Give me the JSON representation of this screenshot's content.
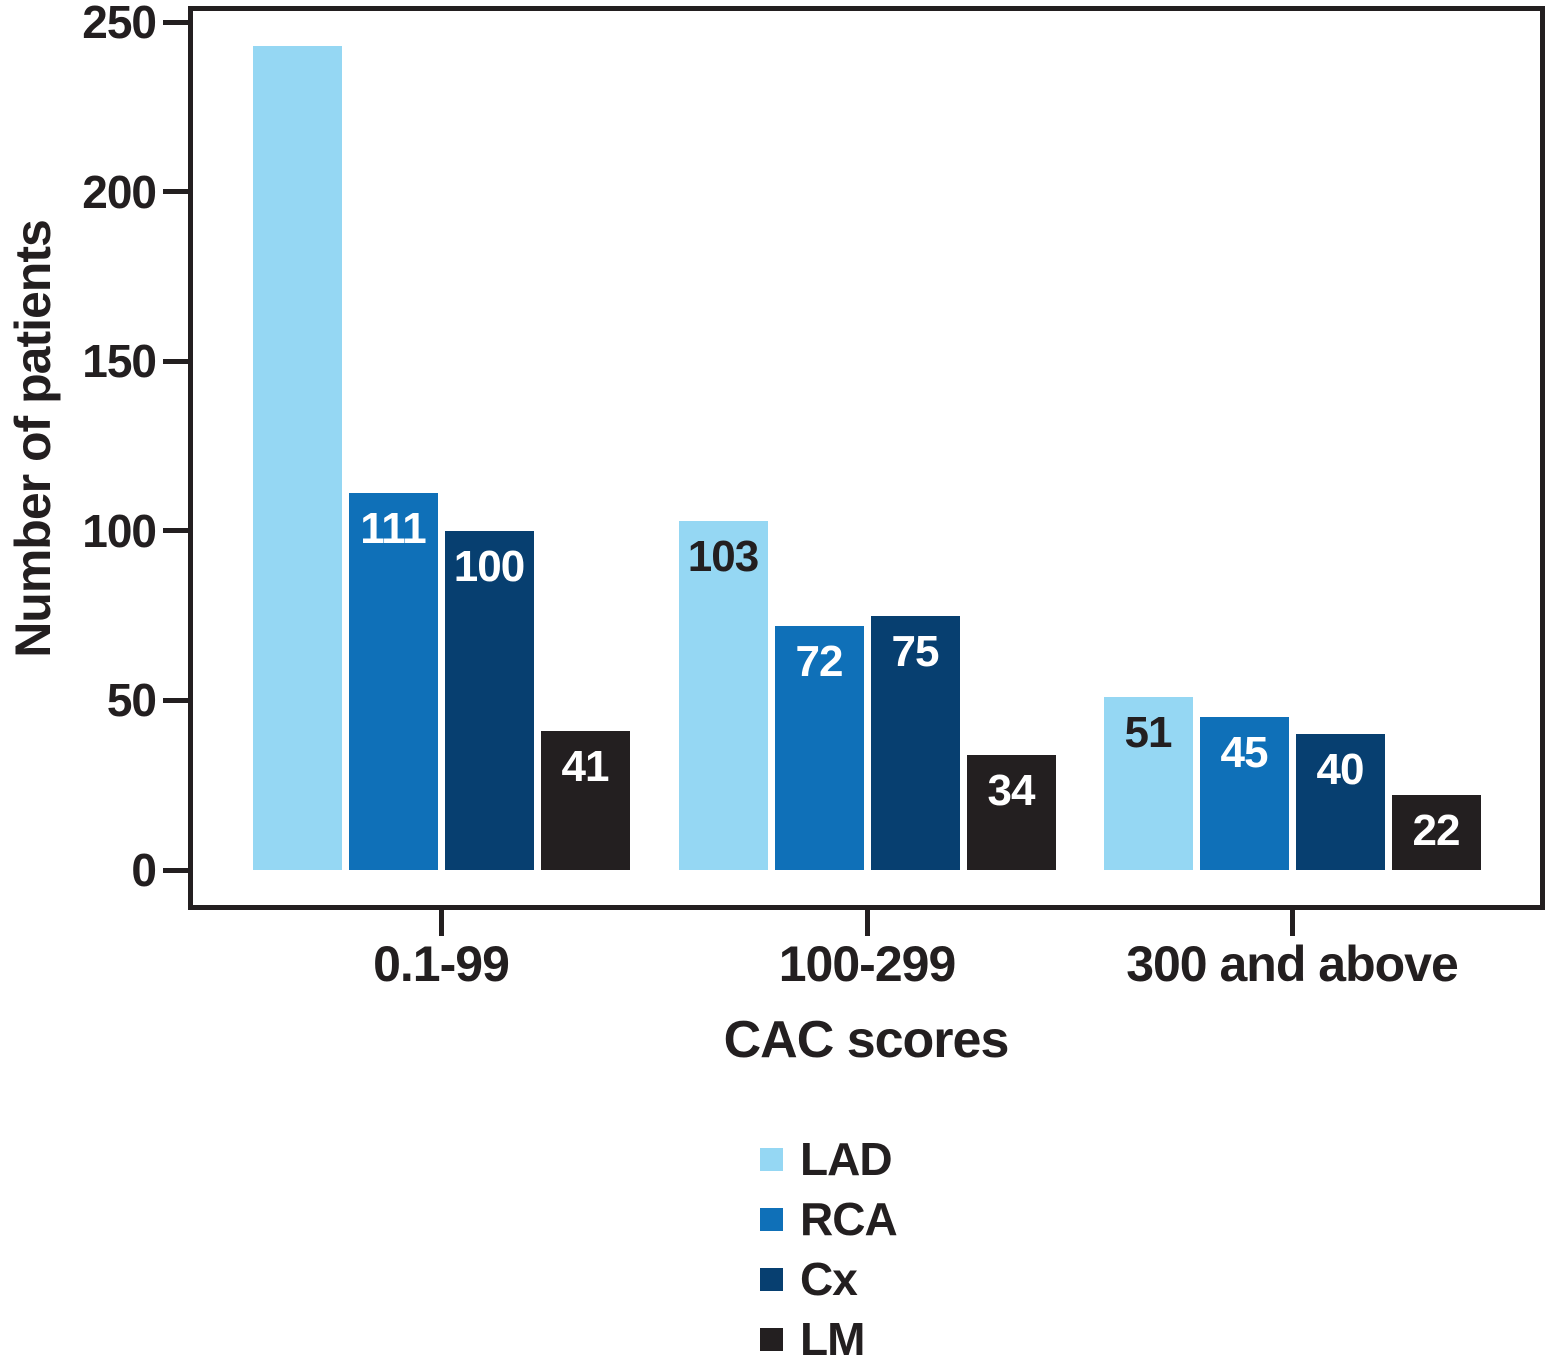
{
  "chart_data": {
    "type": "bar",
    "title": "",
    "xlabel": "CAC scores",
    "ylabel": "Number of patients",
    "categories": [
      "0.1-99",
      "100-299",
      "300 and above"
    ],
    "y_ticks": [
      0,
      50,
      100,
      150,
      200,
      250
    ],
    "ylim": [
      0,
      250
    ],
    "grid": false,
    "legend_position": "bottom-center",
    "frame_color": "#231F20",
    "series": [
      {
        "name": "LAD",
        "color": "#95D7F3",
        "label_color": "#231F20",
        "values": [
          243,
          103,
          51
        ],
        "data_labels": [
          "",
          "103",
          "51"
        ]
      },
      {
        "name": "RCA",
        "color": "#0F70B8",
        "label_color": "#FFFFFF",
        "values": [
          111,
          72,
          45
        ],
        "data_labels": [
          "111",
          "72",
          "45"
        ]
      },
      {
        "name": "Cx",
        "color": "#073F70",
        "label_color": "#FFFFFF",
        "values": [
          100,
          75,
          40
        ],
        "data_labels": [
          "100",
          "75",
          "40"
        ]
      },
      {
        "name": "LM",
        "color": "#231F20",
        "label_color": "#FFFFFF",
        "values": [
          41,
          34,
          22
        ],
        "data_labels": [
          "41",
          "34",
          "22"
        ]
      }
    ]
  }
}
